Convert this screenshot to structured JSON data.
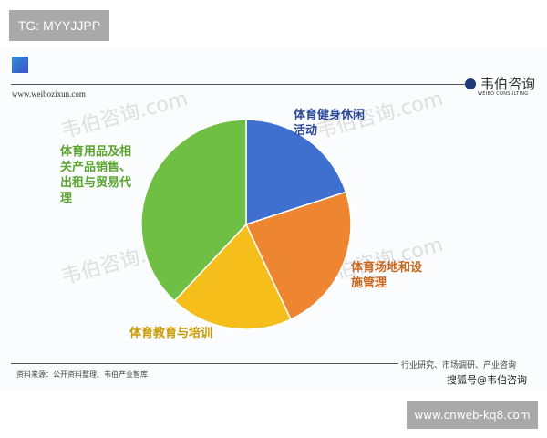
{
  "badge_top": "TG: MYYJJPP",
  "header": {
    "url": "www.weibozixun.com",
    "logo_cn": "韦伯咨询",
    "logo_en": "WEIBO CONSULTING"
  },
  "watermark": "韦伯咨询.com",
  "footer": {
    "source": "资料来源：公开资料整理、韦伯产业智库",
    "tagline": "行业研究、市场调研、产业咨询",
    "sohu": "搜狐号@韦伯咨询",
    "badge_bottom": "www.cnweb-kq8.com"
  },
  "chart_data": {
    "type": "pie",
    "title": "",
    "start": "top",
    "direction": "clockwise",
    "slices": [
      {
        "label": "体育健身休闲活动",
        "value": 20,
        "color": "#3f6fcf",
        "label_color": "#2a4a9a"
      },
      {
        "label": "体育场地和设施管理",
        "value": 23,
        "color": "#ee8530",
        "label_color": "#c9651a"
      },
      {
        "label": "体育教育与培训",
        "value": 19,
        "color": "#f5be1a",
        "label_color": "#c99a00"
      },
      {
        "label": "体育用品及相关产品销售、出租与贸易代理",
        "value": 38,
        "color": "#6fbf44",
        "label_color": "#5aa530"
      }
    ]
  }
}
